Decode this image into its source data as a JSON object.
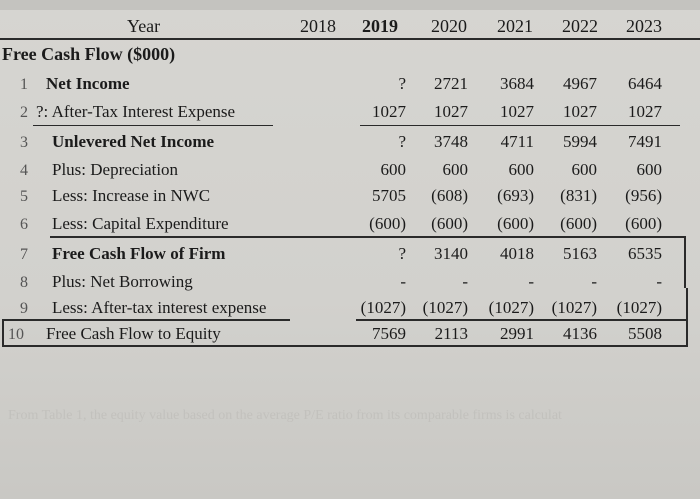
{
  "header": {
    "year_label": "Year",
    "years": [
      "2018",
      "2019",
      "2020",
      "2021",
      "2022",
      "2023"
    ]
  },
  "section_title": "Free Cash Flow ($000)",
  "rows": [
    {
      "num": "1",
      "label": "Net Income",
      "bold": true,
      "values": [
        "?",
        "2721",
        "3684",
        "4967",
        "6464"
      ]
    },
    {
      "num": "2",
      "label": "?: After-Tax Interest Expense",
      "bold": false,
      "values": [
        "1027",
        "1027",
        "1027",
        "1027",
        "1027"
      ]
    },
    {
      "num": "3",
      "label": "Unlevered Net Income",
      "bold": true,
      "values": [
        "?",
        "3748",
        "4711",
        "5994",
        "7491"
      ]
    },
    {
      "num": "4",
      "label": "Plus: Depreciation",
      "bold": false,
      "values": [
        "600",
        "600",
        "600",
        "600",
        "600"
      ]
    },
    {
      "num": "5",
      "label": "Less: Increase in NWC",
      "bold": false,
      "values": [
        "5705",
        "(608)",
        "(693)",
        "(831)",
        "(956)"
      ]
    },
    {
      "num": "6",
      "label": "Less: Capital Expenditure",
      "bold": false,
      "values": [
        "(600)",
        "(600)",
        "(600)",
        "(600)",
        "(600)"
      ]
    },
    {
      "num": "7",
      "label": "Free Cash Flow of Firm",
      "bold": true,
      "values": [
        "?",
        "3140",
        "4018",
        "5163",
        "6535"
      ]
    },
    {
      "num": "8",
      "label": "Plus: Net Borrowing",
      "bold": false,
      "values": [
        "-",
        "-",
        "-",
        "-",
        "-"
      ]
    },
    {
      "num": "9",
      "label": "Less: After-tax interest expense",
      "bold": false,
      "values": [
        "(1027)",
        "(1027)",
        "(1027)",
        "(1027)",
        "(1027)"
      ]
    },
    {
      "num": "10",
      "label": "Free Cash Flow to Equity",
      "bold": false,
      "values": [
        "7569",
        "2113",
        "2991",
        "4136",
        "5508"
      ]
    }
  ],
  "footer_faint_text": "From Table 1, the equity value based on the average P/E ratio from its comparable firms is calculat"
}
